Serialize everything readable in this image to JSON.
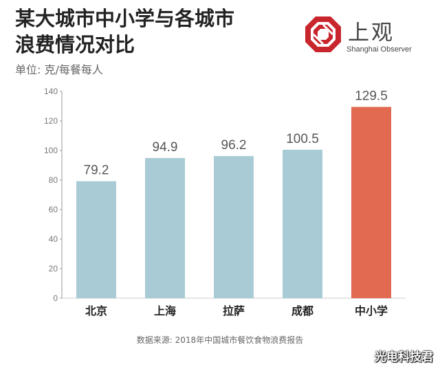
{
  "title_line1": "某大城市中小学与各城市",
  "title_line2": "浪费情况对比",
  "unit_label": "单位: 克/每餐每人",
  "logo": {
    "cn": "上观",
    "en": "Shanghai Observer",
    "color": "#c8252c"
  },
  "source": "数据来源: 2018年中国城市餐饮食物浪费报告",
  "watermark": "光电科技君",
  "colors": {
    "bar": "#a9cbd6",
    "highlight": "#e26a51",
    "axis": "#999999",
    "label": "#555555"
  },
  "chart_data": {
    "type": "bar",
    "title": "某大城市中小学与各城市浪费情况对比",
    "ylabel": "单位: 克/每餐每人",
    "categories": [
      "北京",
      "上海",
      "拉萨",
      "成都",
      "中小学"
    ],
    "values": [
      79.2,
      94.9,
      96.2,
      100.5,
      129.5
    ],
    "value_labels": [
      "79.2",
      "94.9",
      "96.2",
      "100.5",
      "129.5"
    ],
    "highlight_index": 4,
    "ylim": [
      0,
      140
    ],
    "yticks": [
      0,
      20,
      40,
      60,
      80,
      100,
      120,
      140
    ],
    "ytick_labels": [
      "0",
      "20",
      "40",
      "60",
      "80",
      "100",
      "120",
      "140"
    ],
    "grid": false
  }
}
